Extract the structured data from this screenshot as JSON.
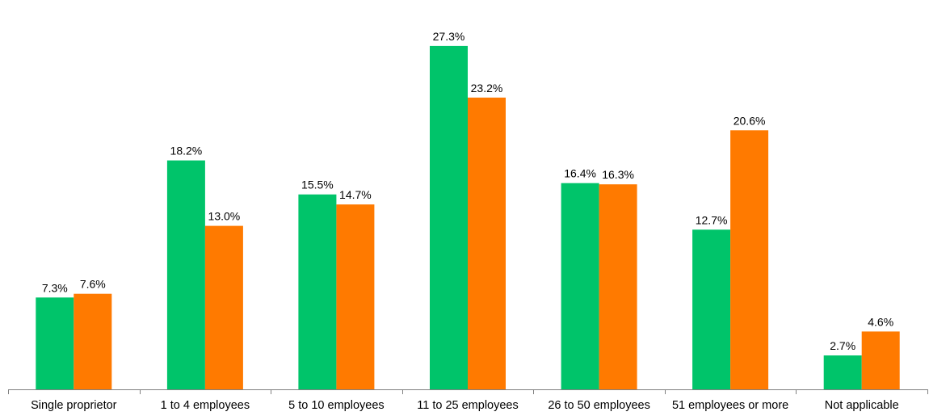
{
  "chart_data": {
    "type": "bar",
    "title": "",
    "xlabel": "",
    "ylabel": "",
    "ylim": [
      0,
      30
    ],
    "grid": false,
    "legend": "none",
    "value_suffix": "%",
    "categories": [
      "Single proprietor",
      "1 to 4 employees",
      "5 to 10 employees",
      "11 to 25 employees",
      "26 to 50 employees",
      "51 employees or more",
      "Not applicable"
    ],
    "series": [
      {
        "color": "#00c46a",
        "values": [
          7.3,
          18.2,
          15.5,
          27.3,
          16.4,
          12.7,
          2.7
        ],
        "labels": [
          "7.3%",
          "18.2%",
          "15.5%",
          "27.3%",
          "16.4%",
          "12.7%",
          "2.7%"
        ]
      },
      {
        "color": "#ff7a00",
        "values": [
          7.6,
          13.0,
          14.7,
          23.2,
          16.3,
          20.6,
          4.6
        ],
        "labels": [
          "7.6%",
          "13.0%",
          "14.7%",
          "23.2%",
          "16.3%",
          "20.6%",
          "4.6%"
        ]
      }
    ]
  },
  "colors": {
    "axis": "#808080",
    "text": "#000000"
  }
}
